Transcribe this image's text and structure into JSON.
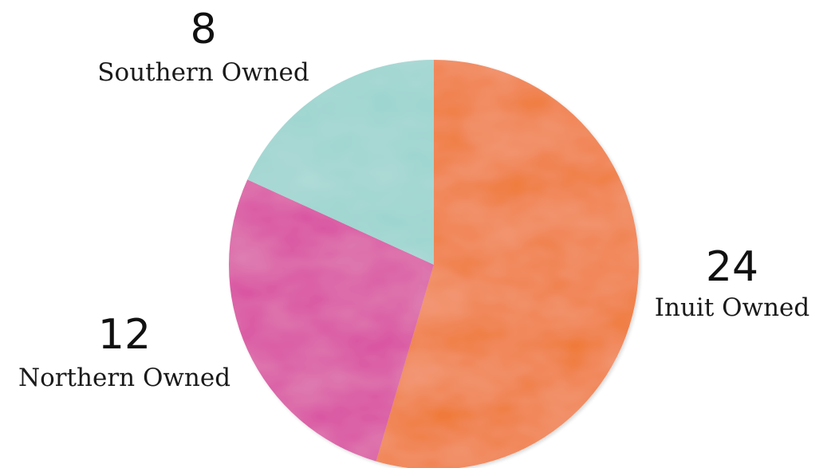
{
  "chart_data": {
    "type": "pie",
    "slices": [
      {
        "label": "Inuit Owned",
        "value": 24,
        "color": "#F07A3A"
      },
      {
        "label": "Northern Owned",
        "value": 12,
        "color": "#D94FA0"
      },
      {
        "label": "Southern Owned",
        "value": 8,
        "color": "#9BD4CF"
      }
    ],
    "start_angle": "top",
    "direction": "clockwise"
  }
}
